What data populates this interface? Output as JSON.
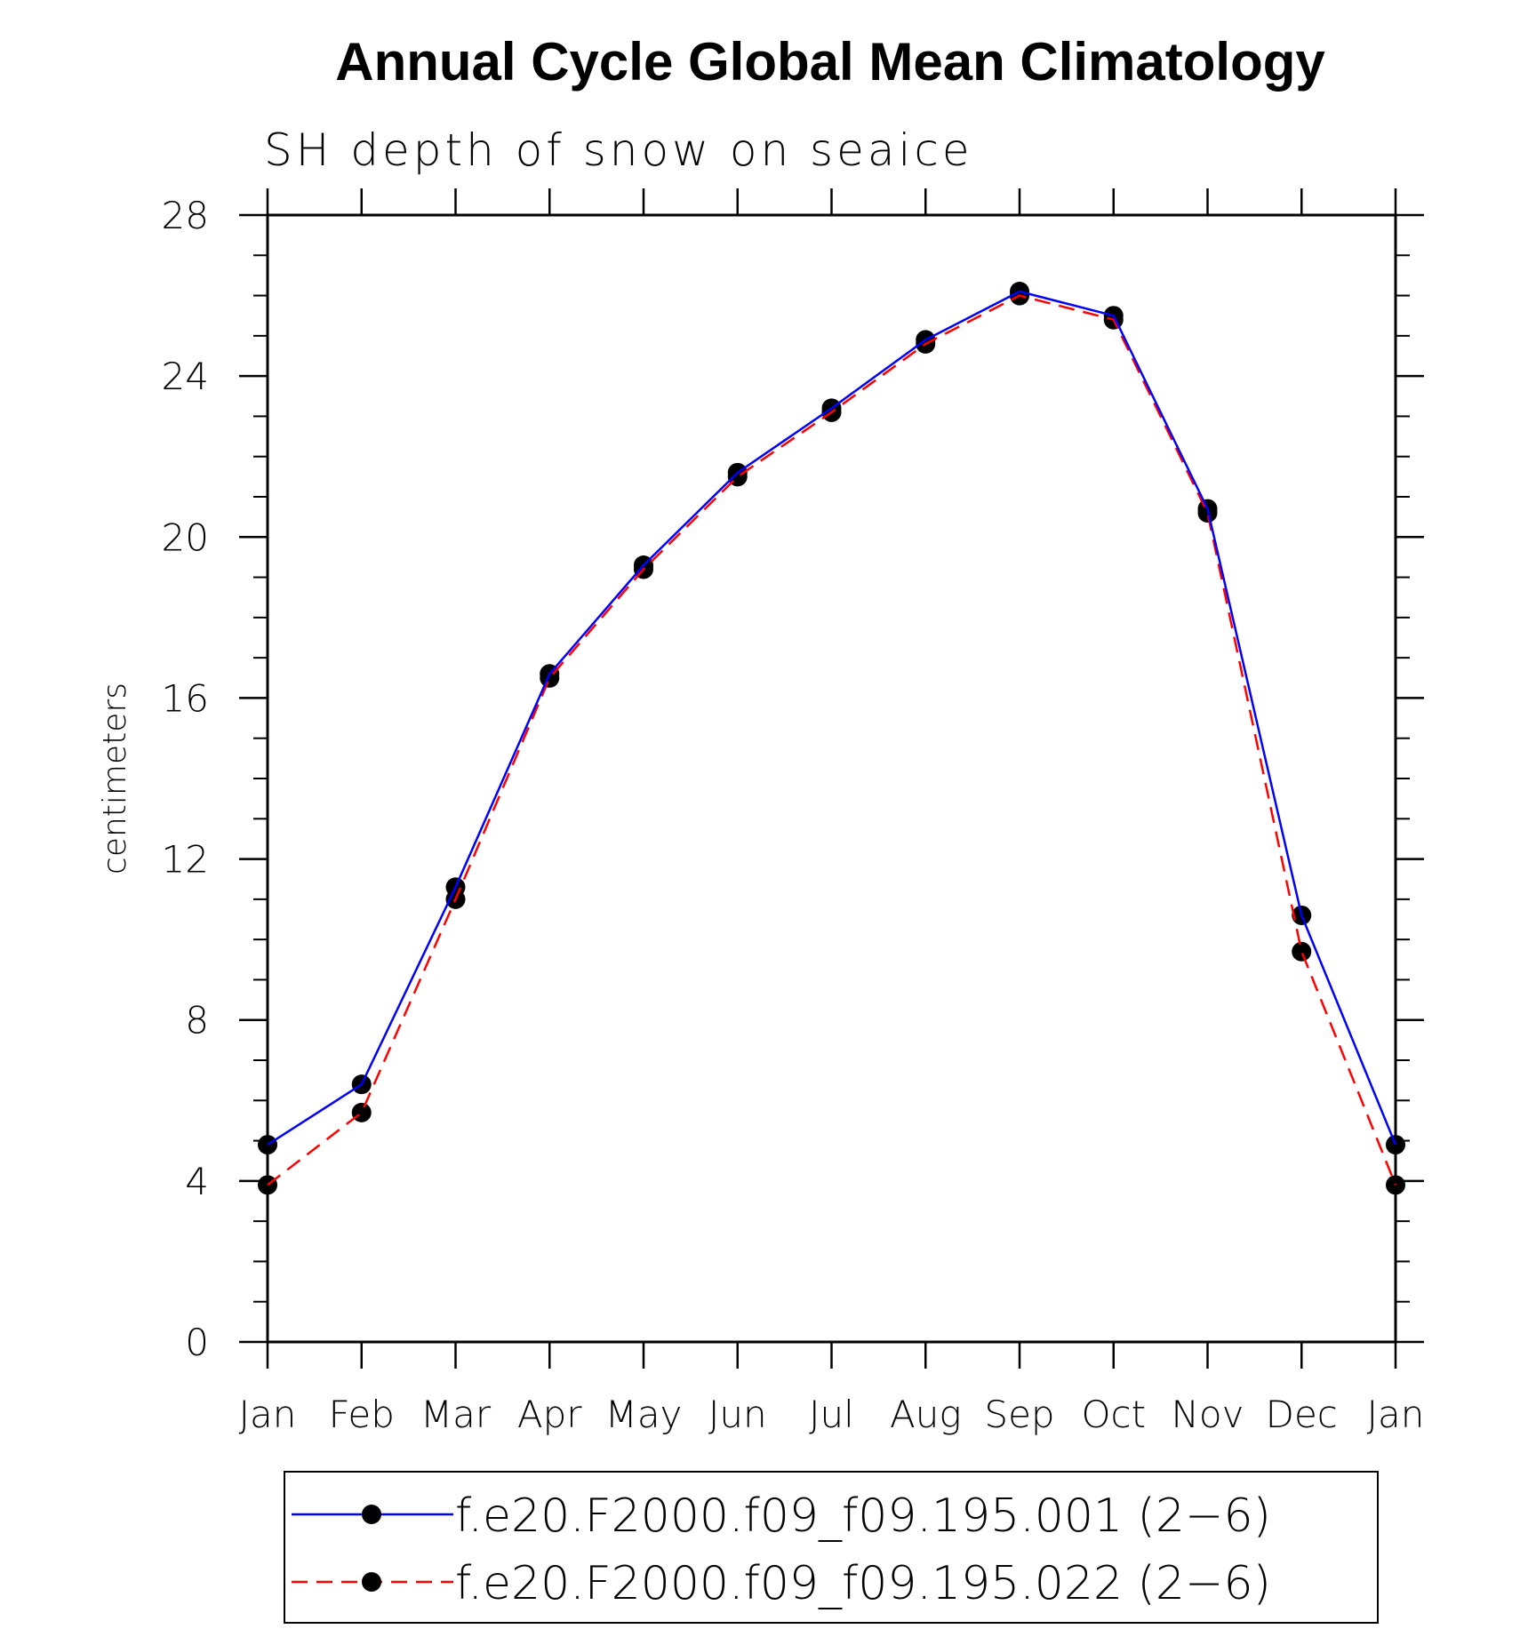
{
  "chart_data": {
    "type": "line",
    "title": "Annual Cycle Global Mean Climatology",
    "subtitle": "SH depth of snow on seaice",
    "xlabel": "",
    "ylabel": "centimeters",
    "categories": [
      "Jan",
      "Feb",
      "Mar",
      "Apr",
      "May",
      "Jun",
      "Jul",
      "Aug",
      "Sep",
      "Oct",
      "Nov",
      "Dec",
      "Jan"
    ],
    "ylim": [
      0,
      28
    ],
    "yticks": [
      0,
      4,
      8,
      12,
      16,
      20,
      24,
      28
    ],
    "ytick_labels": [
      "0",
      "4",
      "8",
      "12",
      "16",
      "20",
      "24",
      "28"
    ],
    "grid": false,
    "legend_position": "bottom",
    "series": [
      {
        "name": "f.e20.F2000.f09_f09.195.001 (2−6)",
        "color": "#0000ff",
        "style": "solid",
        "marker": "filled-circle",
        "values": [
          4.9,
          6.4,
          11.3,
          16.6,
          19.3,
          21.6,
          23.2,
          24.9,
          26.1,
          25.5,
          20.7,
          10.6,
          4.9
        ]
      },
      {
        "name": "f.e20.F2000.f09_f09.195.022 (2−6)",
        "color": "#ff0000",
        "style": "dashed",
        "marker": "filled-circle",
        "values": [
          3.9,
          5.7,
          11.0,
          16.5,
          19.2,
          21.5,
          23.1,
          24.8,
          26.0,
          25.4,
          20.6,
          9.7,
          3.9
        ]
      }
    ]
  }
}
